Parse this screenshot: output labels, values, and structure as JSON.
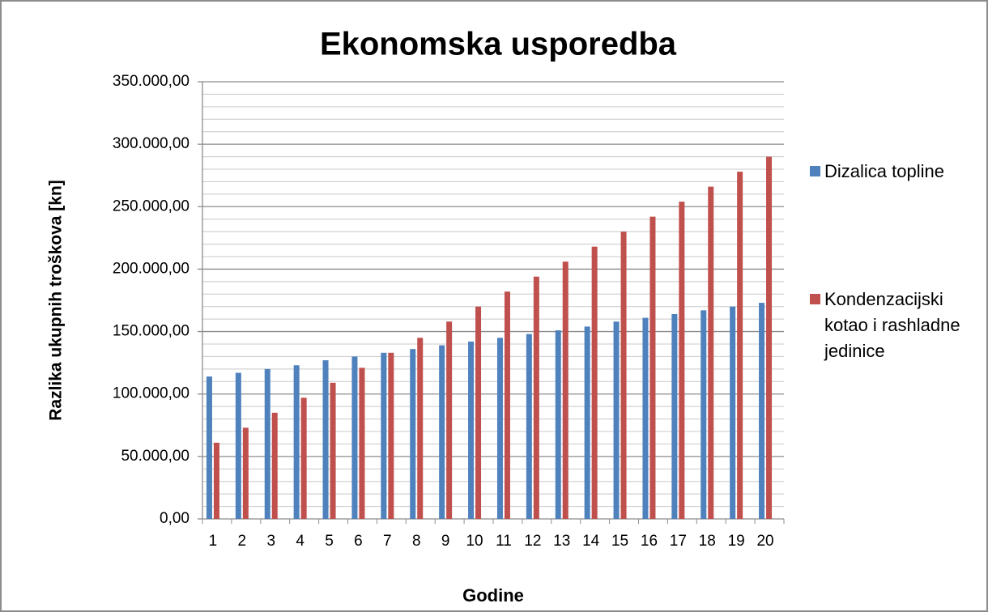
{
  "chart_data": {
    "type": "bar",
    "title": "Ekonomska usporedba",
    "x_label": "Godine",
    "y_label": "Razlika ukupnih troškova [kn]",
    "categories": [
      "1",
      "2",
      "3",
      "4",
      "5",
      "6",
      "7",
      "8",
      "9",
      "10",
      "11",
      "12",
      "13",
      "14",
      "15",
      "16",
      "17",
      "18",
      "19",
      "20"
    ],
    "series": [
      {
        "name": "Dizalica topline",
        "color": "#4f81bd",
        "values": [
          114000,
          117000,
          120000,
          123000,
          127000,
          130000,
          133000,
          136000,
          139000,
          142000,
          145000,
          148000,
          151000,
          154000,
          158000,
          161000,
          164000,
          167000,
          170000,
          173000
        ]
      },
      {
        "name": "Kondenzacijski kotao i rashladne jedinice",
        "color": "#c0504d",
        "values": [
          61000,
          73000,
          85000,
          97000,
          109000,
          121000,
          133000,
          145000,
          158000,
          170000,
          182000,
          194000,
          206000,
          218000,
          230000,
          242000,
          254000,
          266000,
          278000,
          290000
        ]
      }
    ],
    "ylim": [
      0,
      350000
    ],
    "yticks": [
      {
        "value": 0,
        "label": "0,00"
      },
      {
        "value": 50000,
        "label": "50.000,00"
      },
      {
        "value": 100000,
        "label": "100.000,00"
      },
      {
        "value": 150000,
        "label": "150.000,00"
      },
      {
        "value": 200000,
        "label": "200.000,00"
      },
      {
        "value": 250000,
        "label": "250.000,00"
      },
      {
        "value": 300000,
        "label": "300.000,00"
      },
      {
        "value": 350000,
        "label": "350.000,00"
      }
    ],
    "grid": true,
    "minor_grid": true,
    "legend": "right"
  }
}
